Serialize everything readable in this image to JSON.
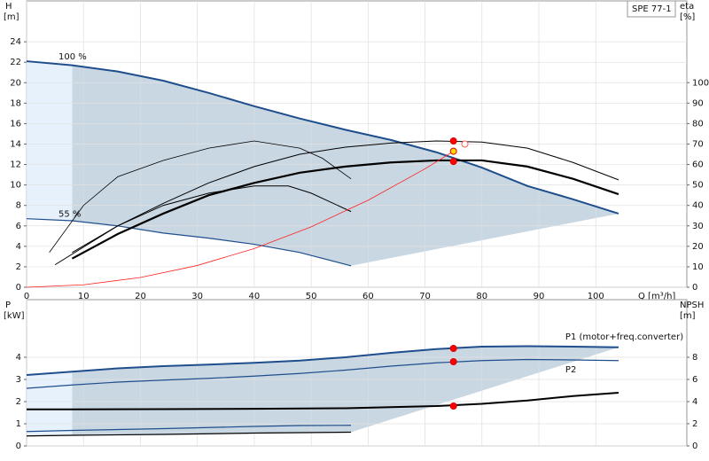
{
  "chart_data": [
    {
      "type": "line",
      "y_label": "H",
      "y_unit": "[m]",
      "y2_label": "eta",
      "y2_unit": "[%]",
      "x_label": "Q [m³/h]",
      "badge": "SPE 77-1",
      "xlim": [
        0,
        116
      ],
      "xticks": [
        0,
        10,
        20,
        30,
        40,
        50,
        60,
        70,
        80,
        90,
        100
      ],
      "ylim": [
        0,
        28
      ],
      "yticks": [
        0,
        2,
        4,
        6,
        8,
        10,
        12,
        14,
        16,
        18,
        20,
        22,
        24
      ],
      "y2lim": [
        0,
        140
      ],
      "y2ticks": [
        0,
        10,
        20,
        30,
        40,
        50,
        60,
        70,
        80,
        90,
        100
      ],
      "grid": true,
      "fill_color": "#c9d7e3",
      "light_fill_color": "#e6f1fb",
      "min_flow": 8,
      "series": [
        {
          "name": "100 %",
          "color": "#1f4e8c",
          "width": 2,
          "x": [
            0,
            8,
            16,
            24,
            32,
            40,
            48,
            56,
            64,
            72,
            80,
            88,
            96,
            104
          ],
          "values": [
            22.1,
            21.7,
            21.1,
            20.2,
            19,
            17.7,
            16.5,
            15.4,
            14.4,
            13.2,
            11.7,
            9.9,
            8.6,
            7.2
          ]
        },
        {
          "name": "55 %",
          "color": "#1f4e8c",
          "width": 1.2,
          "x": [
            0,
            8,
            16,
            24,
            32,
            40,
            48,
            57
          ],
          "values": [
            6.7,
            6.5,
            6,
            5.3,
            4.8,
            4.2,
            3.4,
            2.1
          ]
        },
        {
          "color": "#000000",
          "width": 1,
          "axis": "y2",
          "x": [
            8,
            16,
            24,
            32,
            40,
            48,
            56,
            64,
            72,
            80,
            88,
            96,
            104
          ],
          "values": [
            17,
            30,
            41,
            51,
            59,
            65,
            68.5,
            70.5,
            71.5,
            71,
            68,
            61,
            52.5
          ]
        },
        {
          "color": "#000000",
          "width": 2.2,
          "axis": "y2",
          "x": [
            8,
            16,
            24,
            32,
            40,
            48,
            56,
            64,
            72,
            80,
            88,
            96,
            104
          ],
          "values": [
            14,
            26,
            36,
            45,
            51,
            56,
            59,
            61,
            62,
            62,
            59,
            53,
            45.5
          ]
        },
        {
          "color": "#000000",
          "width": 0.8,
          "axis": "y2",
          "x": [
            4,
            10,
            16,
            24,
            32,
            40,
            48,
            52,
            57
          ],
          "values": [
            17,
            40,
            54,
            62,
            68,
            71.5,
            68,
            63,
            53
          ]
        },
        {
          "color": "#000000",
          "width": 1,
          "axis": "y2",
          "x": [
            5,
            16,
            24,
            32,
            40,
            46,
            50,
            57
          ],
          "values": [
            11,
            30,
            40,
            46,
            49.5,
            49.5,
            46,
            37
          ]
        },
        {
          "color": "#ff2020",
          "width": 0.8,
          "x": [
            0,
            10,
            20,
            30,
            40,
            50,
            60,
            70,
            75
          ],
          "values": [
            0,
            0.24,
            0.95,
            2.13,
            3.78,
            5.91,
            8.51,
            11.58,
            13.3
          ]
        },
        {
          "color": "#ff0000",
          "marker": "dot",
          "x": [
            75
          ],
          "values": [
            14.3
          ]
        },
        {
          "color": "#ffd700",
          "marker": "dot",
          "x": [
            75
          ],
          "values": [
            13.3
          ]
        },
        {
          "color": "#ff0000",
          "marker": "dot",
          "x": [
            75
          ],
          "values": [
            12.3
          ]
        },
        {
          "color": "#ff6060",
          "marker": "ring",
          "x": [
            77
          ],
          "values": [
            14
          ]
        }
      ]
    },
    {
      "type": "line",
      "y_label": "P",
      "y_unit": "[kW]",
      "y2_label": "NPSH",
      "y2_unit": "[m]",
      "xlim": [
        0,
        116
      ],
      "xticks": [
        0,
        10,
        20,
        30,
        40,
        50,
        60,
        70,
        80,
        90,
        100
      ],
      "ylim": [
        0,
        6.6
      ],
      "yticks": [
        0,
        1,
        2,
        3,
        4
      ],
      "y2lim": [
        0,
        13.2
      ],
      "y2ticks": [
        0,
        2,
        4,
        6,
        8
      ],
      "grid": true,
      "fill_color": "#c9d7e3",
      "light_fill_color": "#e6f1fb",
      "min_flow": 8,
      "series": [
        {
          "name": "P1 (motor+freq.converter)",
          "color": "#1f4e8c",
          "width": 2,
          "x": [
            0,
            8,
            16,
            24,
            32,
            40,
            48,
            56,
            64,
            72,
            80,
            88,
            96,
            104
          ],
          "values": [
            3.2,
            3.35,
            3.5,
            3.6,
            3.67,
            3.75,
            3.85,
            4,
            4.2,
            4.37,
            4.48,
            4.5,
            4.48,
            4.45
          ]
        },
        {
          "color": "#000000",
          "width": 1.2,
          "x": [
            0,
            8,
            24,
            40,
            57
          ],
          "values": [
            0.45,
            0.48,
            0.52,
            0.58,
            0.62
          ]
        },
        {
          "name": "P2",
          "color": "#1f4e8c",
          "width": 1.2,
          "x": [
            0,
            8,
            16,
            24,
            32,
            40,
            48,
            56,
            64,
            72,
            80,
            88,
            96,
            104
          ],
          "values": [
            2.6,
            2.75,
            2.88,
            2.97,
            3.05,
            3.15,
            3.27,
            3.42,
            3.6,
            3.75,
            3.85,
            3.9,
            3.88,
            3.85
          ]
        },
        {
          "color": "#1f4e8c",
          "width": 1.2,
          "x": [
            0,
            8,
            24,
            40,
            48,
            57
          ],
          "values": [
            0.65,
            0.7,
            0.78,
            0.88,
            0.92,
            0.93
          ]
        },
        {
          "color": "#000000",
          "width": 2,
          "axis": "y2",
          "x": [
            0,
            8,
            24,
            40,
            56,
            64,
            72,
            80,
            88,
            96,
            104
          ],
          "values": [
            3.3,
            3.3,
            3.32,
            3.35,
            3.4,
            3.5,
            3.6,
            3.8,
            4.1,
            4.5,
            4.8
          ]
        },
        {
          "color": "#ff0000",
          "marker": "dot",
          "x": [
            75
          ],
          "values": [
            4.4
          ]
        },
        {
          "color": "#ff0000",
          "marker": "dot",
          "x": [
            75
          ],
          "values": [
            3.8
          ]
        },
        {
          "color": "#ff0000",
          "marker": "dot",
          "axis": "y2",
          "x": [
            75
          ],
          "values": [
            3.6
          ]
        }
      ]
    }
  ]
}
